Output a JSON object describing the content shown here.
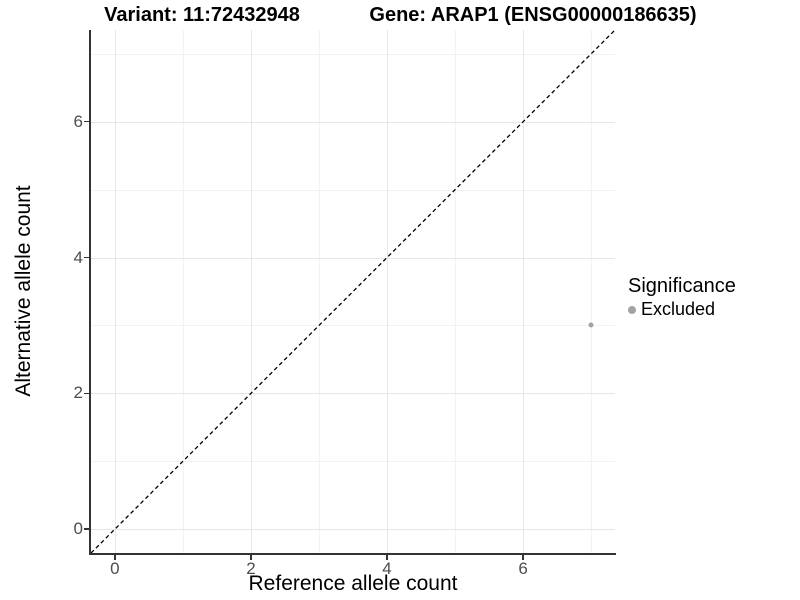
{
  "chart_data": {
    "type": "scatter",
    "titles": {
      "variant": "Variant: 11:72432948",
      "gene": "Gene: ARAP1 (ENSG00000186635)"
    },
    "xlabel": "Reference allele count",
    "ylabel": "Alternative allele count",
    "xlim": [
      -0.35,
      7.35
    ],
    "ylim": [
      -0.35,
      7.35
    ],
    "x_ticks": [
      0,
      2,
      4,
      6
    ],
    "y_ticks": [
      0,
      2,
      4,
      6
    ],
    "x_minor_gridlines": [
      1,
      3,
      5,
      7
    ],
    "y_minor_gridlines": [
      1,
      3,
      5,
      7
    ],
    "grid": true,
    "identity_line": {
      "style": "dashed",
      "from": [
        -0.35,
        -0.35
      ],
      "to": [
        7.35,
        7.35
      ],
      "color": "#000000"
    },
    "series": [
      {
        "name": "Excluded",
        "color": "#a3a3a3",
        "points": [
          [
            7,
            3
          ]
        ]
      }
    ],
    "legend": {
      "title": "Significance",
      "position": "right",
      "items": [
        {
          "label": "Excluded",
          "color": "#a3a3a3"
        }
      ]
    }
  },
  "colors": {
    "background": "#ffffff",
    "grid_major": "#e6e6e6",
    "grid_minor": "#f2f2f2",
    "axis_line": "#333333",
    "tick_label": "#4d4d4d",
    "title_text": "#000000"
  }
}
